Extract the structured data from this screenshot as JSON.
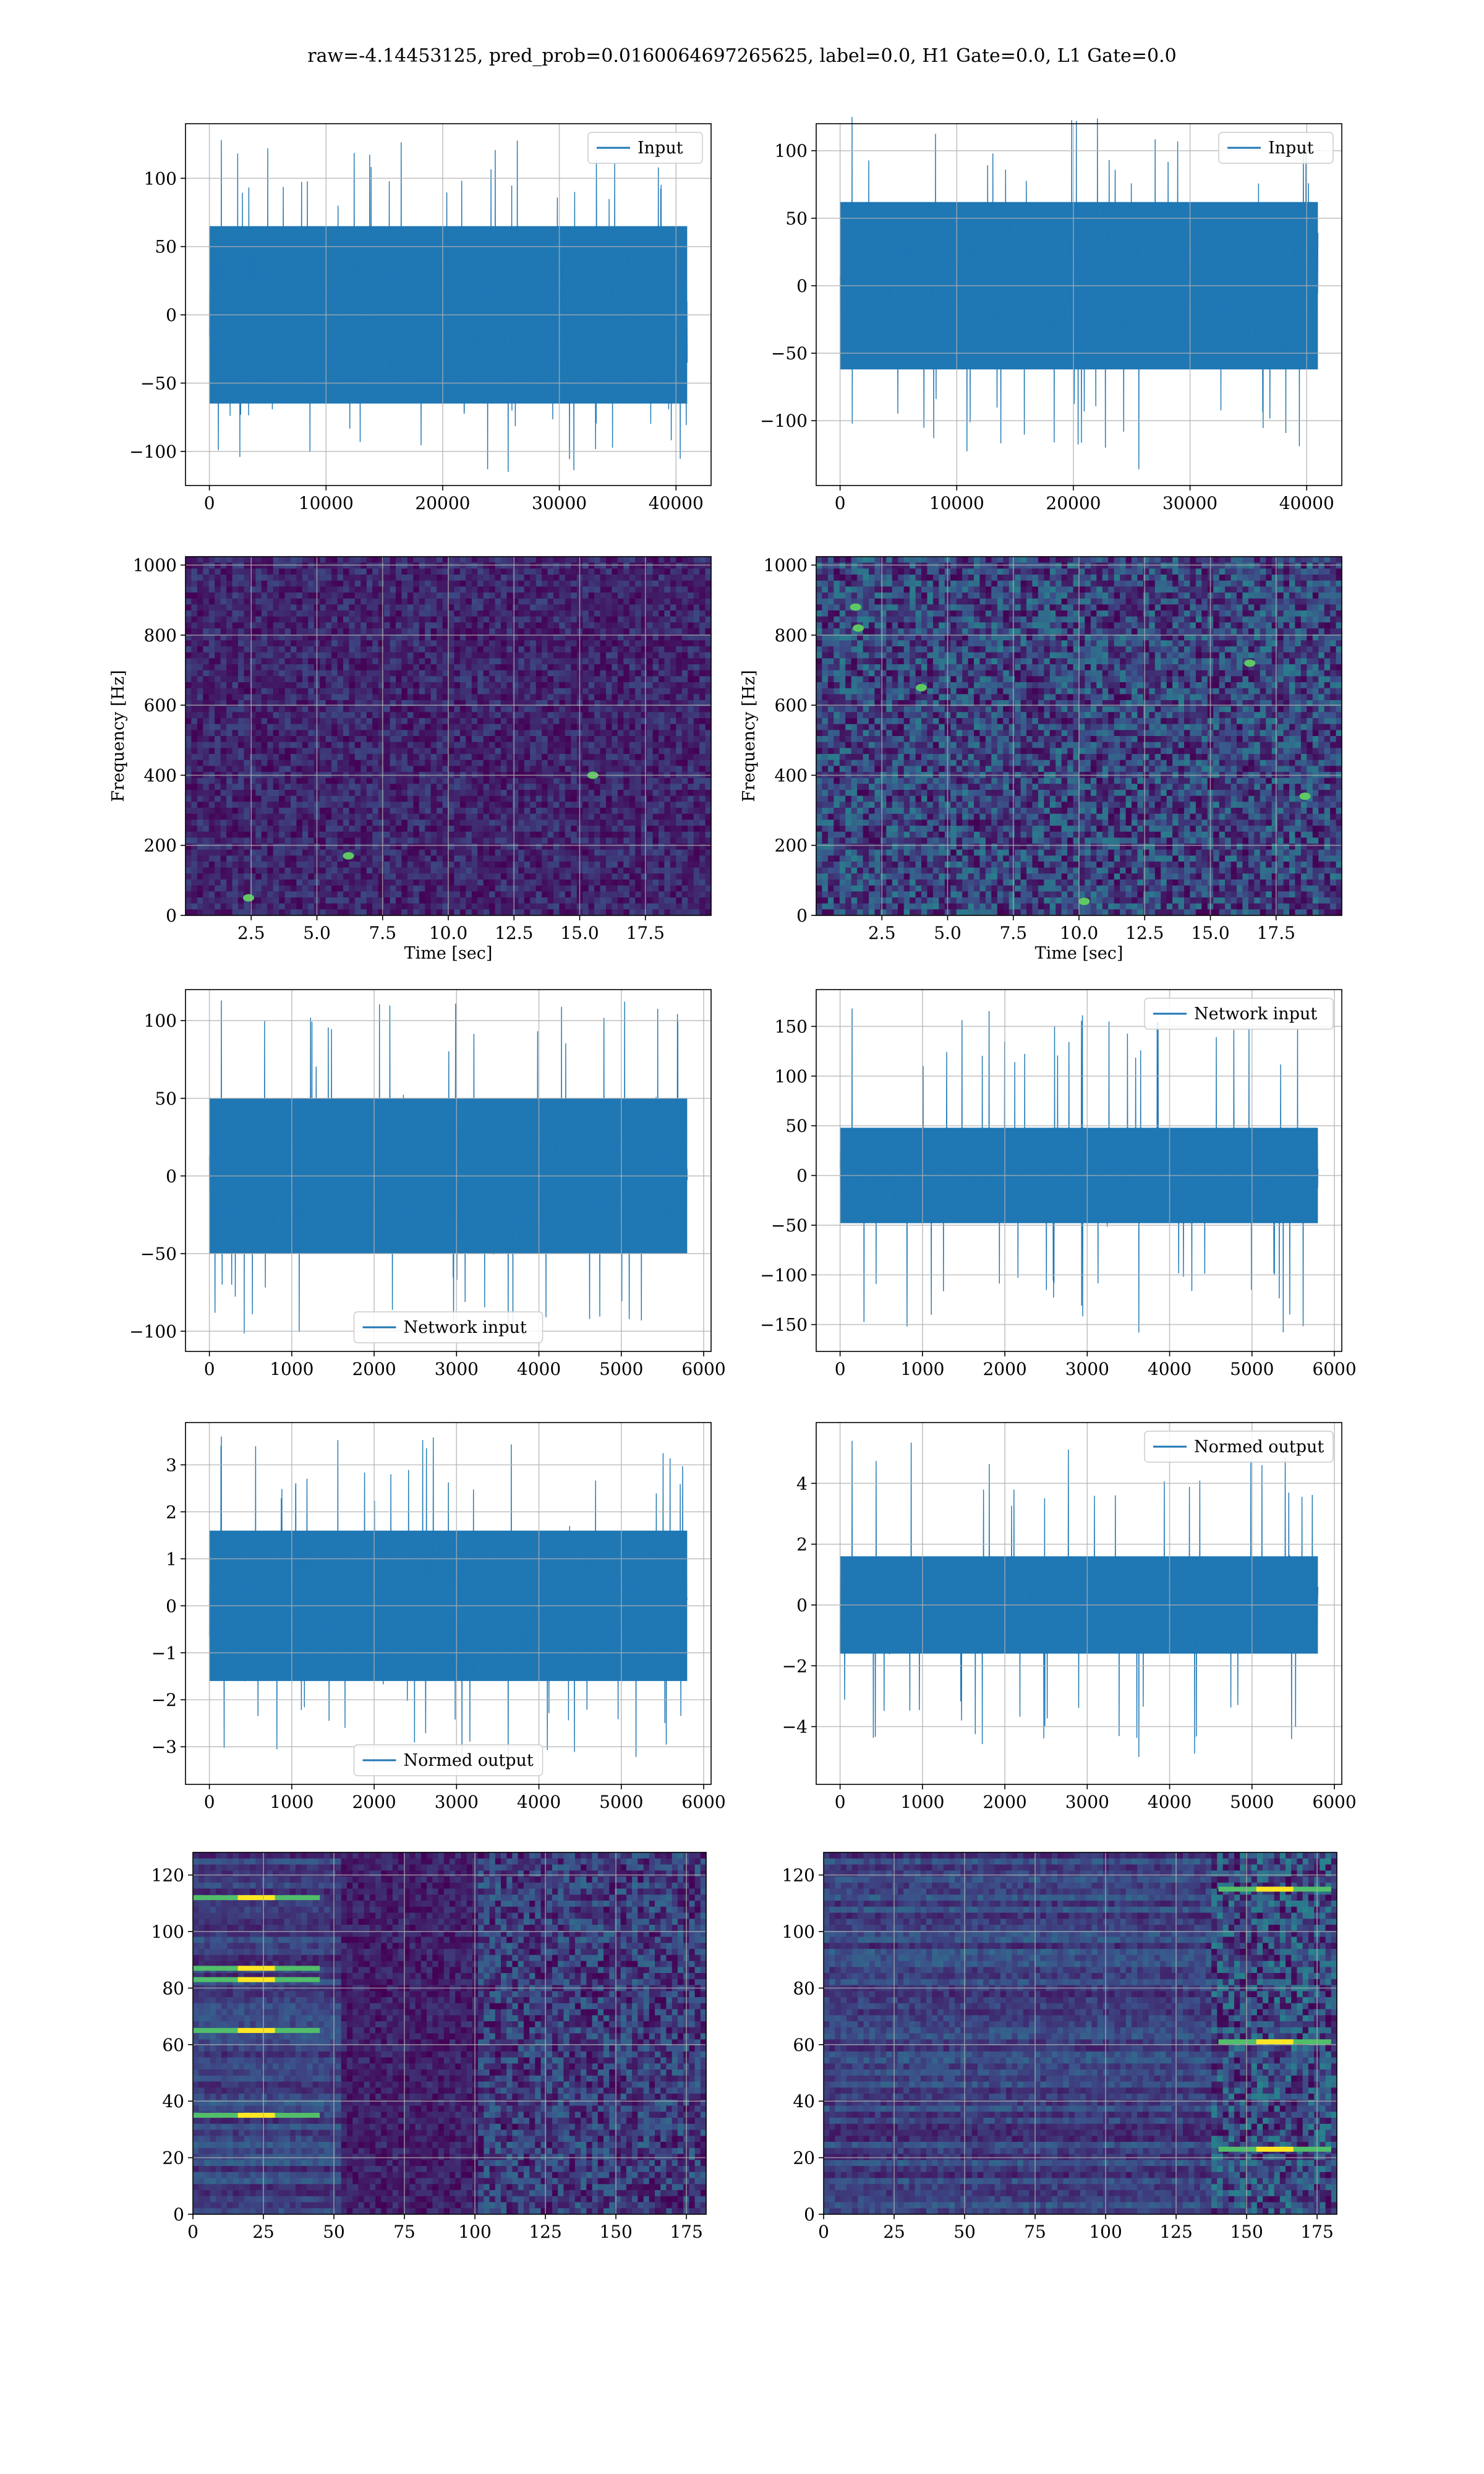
{
  "figure": {
    "title": "raw=-4.14453125, pred_prob=0.0160064697265625, label=0.0, H1 Gate=0.0, L1 Gate=0.0"
  },
  "colors": {
    "line": "#1f77b4",
    "grid": "#b0b0b0",
    "viridis": [
      "#440154",
      "#3b528b",
      "#21918c",
      "#5ec962",
      "#fde725"
    ]
  },
  "chart_data": [
    {
      "id": "r1c1",
      "type": "line",
      "title": "",
      "xlabel": "",
      "ylabel": "",
      "legend": "Input",
      "legend_loc": "upper right",
      "x_range": [
        0,
        40960
      ],
      "xlim": [
        -2048,
        43008
      ],
      "ylim": [
        -125,
        140
      ],
      "xticks": [
        0,
        10000,
        20000,
        30000,
        40000
      ],
      "yticks": [
        -100,
        -50,
        0,
        50,
        100
      ],
      "envelope": {
        "base": 65,
        "peak_max": 128,
        "peak_min": -115
      }
    },
    {
      "id": "r1c2",
      "type": "line",
      "title": "",
      "xlabel": "",
      "ylabel": "",
      "legend": "Input",
      "legend_loc": "upper right",
      "x_range": [
        0,
        40960
      ],
      "xlim": [
        -2048,
        43008
      ],
      "ylim": [
        -148,
        120
      ],
      "xticks": [
        0,
        10000,
        20000,
        30000,
        40000
      ],
      "yticks": [
        -100,
        -50,
        0,
        50,
        100
      ],
      "envelope": {
        "base": 62,
        "peak_max": 125,
        "peak_min": -136
      }
    },
    {
      "id": "r2c1",
      "type": "heatmap",
      "title": "",
      "xlabel": "Time [sec]",
      "ylabel": "Frequency [Hz]",
      "xlim": [
        0,
        20
      ],
      "ylim": [
        0,
        1024
      ],
      "xticks": [
        2.5,
        5.0,
        7.5,
        10.0,
        12.5,
        15.0,
        17.5
      ],
      "xtick_labels": [
        "2.5",
        "5.0",
        "7.5",
        "10.0",
        "12.5",
        "15.0",
        "17.5"
      ],
      "yticks": [
        0,
        200,
        400,
        600,
        800,
        1000
      ],
      "intensity": "low",
      "hot_spots": [
        [
          2.4,
          50
        ],
        [
          6.2,
          170
        ],
        [
          15.5,
          400
        ]
      ]
    },
    {
      "id": "r2c2",
      "type": "heatmap",
      "title": "",
      "xlabel": "Time [sec]",
      "ylabel": "Frequency [Hz]",
      "xlim": [
        0,
        20
      ],
      "ylim": [
        0,
        1024
      ],
      "xticks": [
        2.5,
        5.0,
        7.5,
        10.0,
        12.5,
        15.0,
        17.5
      ],
      "xtick_labels": [
        "2.5",
        "5.0",
        "7.5",
        "10.0",
        "12.5",
        "15.0",
        "17.5"
      ],
      "yticks": [
        0,
        200,
        400,
        600,
        800,
        1000
      ],
      "intensity": "medium",
      "hot_spots": [
        [
          1.5,
          880
        ],
        [
          1.6,
          820
        ],
        [
          18.6,
          340
        ],
        [
          10.2,
          40
        ],
        [
          4.0,
          650
        ],
        [
          16.5,
          720
        ]
      ]
    },
    {
      "id": "r3c1",
      "type": "line",
      "title": "",
      "xlabel": "",
      "ylabel": "",
      "legend": "Network input",
      "legend_loc": "lower center",
      "x_range": [
        0,
        5800
      ],
      "xlim": [
        -290,
        6090
      ],
      "ylim": [
        -113,
        120
      ],
      "xticks": [
        0,
        1000,
        2000,
        3000,
        4000,
        5000,
        6000
      ],
      "yticks": [
        -100,
        -50,
        0,
        50,
        100
      ],
      "envelope": {
        "base": 50,
        "peak_max": 113,
        "peak_min": -103
      }
    },
    {
      "id": "r3c2",
      "type": "line",
      "title": "",
      "xlabel": "",
      "ylabel": "",
      "legend": "Network input",
      "legend_loc": "upper right",
      "x_range": [
        0,
        5800
      ],
      "xlim": [
        -290,
        6090
      ],
      "ylim": [
        -177,
        187
      ],
      "xticks": [
        0,
        1000,
        2000,
        3000,
        4000,
        5000,
        6000
      ],
      "yticks": [
        -150,
        -100,
        -50,
        0,
        50,
        100,
        150
      ],
      "envelope": {
        "base": 48,
        "peak_max": 168,
        "peak_min": -158
      }
    },
    {
      "id": "r4c1",
      "type": "line",
      "title": "",
      "xlabel": "",
      "ylabel": "",
      "legend": "Normed output",
      "legend_loc": "lower center",
      "x_range": [
        0,
        5800
      ],
      "xlim": [
        -290,
        6090
      ],
      "ylim": [
        -3.8,
        3.9
      ],
      "xticks": [
        0,
        1000,
        2000,
        3000,
        4000,
        5000,
        6000
      ],
      "yticks": [
        -3,
        -2,
        -1,
        0,
        1,
        2,
        3
      ],
      "envelope": {
        "base": 1.6,
        "peak_max": 3.6,
        "peak_min": -3.35
      }
    },
    {
      "id": "r4c2",
      "type": "line",
      "title": "",
      "xlabel": "",
      "ylabel": "",
      "legend": "Normed output",
      "legend_loc": "upper right",
      "x_range": [
        0,
        5800
      ],
      "xlim": [
        -290,
        6090
      ],
      "ylim": [
        -5.9,
        6.0
      ],
      "xticks": [
        0,
        1000,
        2000,
        3000,
        4000,
        5000,
        6000
      ],
      "yticks": [
        -4,
        -2,
        0,
        2,
        4
      ],
      "envelope": {
        "base": 1.6,
        "peak_max": 5.4,
        "peak_min": -5.0
      }
    },
    {
      "id": "r5c1",
      "type": "heatmap",
      "title": "",
      "xlabel": "",
      "ylabel": "",
      "xlim": [
        0,
        182
      ],
      "ylim": [
        128,
        0
      ],
      "xticks": [
        0,
        25,
        50,
        75,
        100,
        125,
        150,
        175
      ],
      "yticks": [
        0,
        20,
        40,
        60,
        80,
        100,
        120
      ],
      "pattern": "bands-left",
      "hot_rows": [
        35,
        65,
        83,
        87,
        112
      ]
    },
    {
      "id": "r5c2",
      "type": "heatmap",
      "title": "",
      "xlabel": "",
      "ylabel": "",
      "xlim": [
        0,
        182
      ],
      "ylim": [
        128,
        0
      ],
      "xticks": [
        0,
        25,
        50,
        75,
        100,
        125,
        150,
        175
      ],
      "yticks": [
        0,
        20,
        40,
        60,
        80,
        100,
        120
      ],
      "pattern": "bands-right",
      "hot_rows": [
        23,
        61,
        115
      ]
    }
  ]
}
